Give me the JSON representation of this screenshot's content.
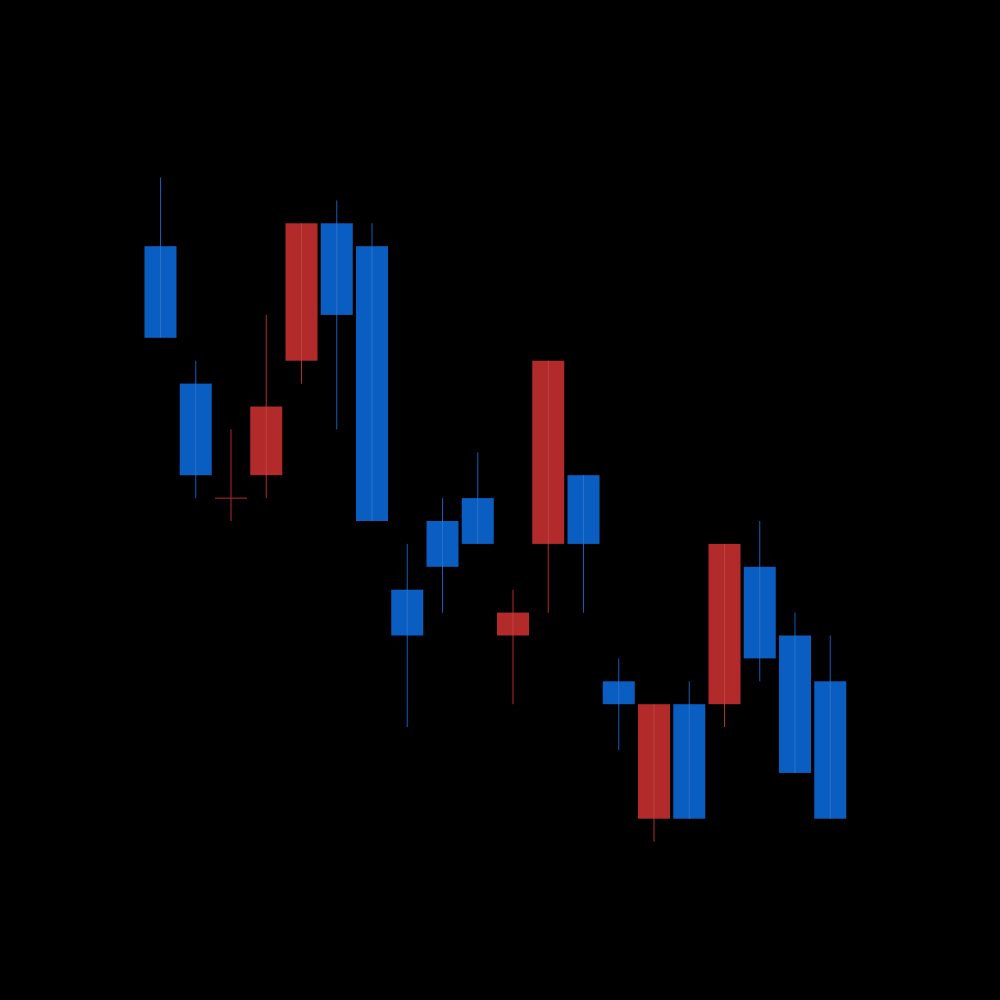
{
  "chart_data": {
    "type": "candlestick",
    "title": "",
    "xlabel": "",
    "ylabel": "",
    "ylim": [
      0,
      29
    ],
    "grid": false,
    "colors": {
      "background": "#000000",
      "up": "#b22a2a",
      "down": "#0a5ec2"
    },
    "candles": [
      {
        "open": 22,
        "high": 25,
        "low": 18,
        "close": 18
      },
      {
        "open": 16,
        "high": 17,
        "low": 11,
        "close": 12
      },
      {
        "open": 11,
        "high": 14,
        "low": 10,
        "close": 11
      },
      {
        "open": 12,
        "high": 19,
        "low": 11,
        "close": 15
      },
      {
        "open": 17,
        "high": 23,
        "low": 16,
        "close": 23
      },
      {
        "open": 23,
        "high": 24,
        "low": 14,
        "close": 19
      },
      {
        "open": 22,
        "high": 23,
        "low": 10,
        "close": 10
      },
      {
        "open": 7,
        "high": 9,
        "low": 1,
        "close": 5
      },
      {
        "open": 10,
        "high": 11,
        "low": 6,
        "close": 8
      },
      {
        "open": 11,
        "high": 13,
        "low": 9,
        "close": 9
      },
      {
        "open": 5,
        "high": 7,
        "low": 2,
        "close": 6
      },
      {
        "open": 9,
        "high": 17,
        "low": 6,
        "close": 17
      },
      {
        "open": 12,
        "high": 12,
        "low": 6,
        "close": 9
      },
      {
        "open": 3,
        "high": 4,
        "low": 0,
        "close": 2
      },
      {
        "open": -3,
        "high": 2,
        "low": -4,
        "close": 2
      },
      {
        "open": 2,
        "high": 3,
        "low": -3,
        "close": -3
      },
      {
        "open": 2,
        "high": 9,
        "low": 1,
        "close": 9
      },
      {
        "open": 8,
        "high": 10,
        "low": 3,
        "close": 4
      },
      {
        "open": 5,
        "high": 6,
        "low": -1,
        "close": -1
      },
      {
        "open": 3,
        "high": 5,
        "low": -3,
        "close": -3
      }
    ]
  }
}
